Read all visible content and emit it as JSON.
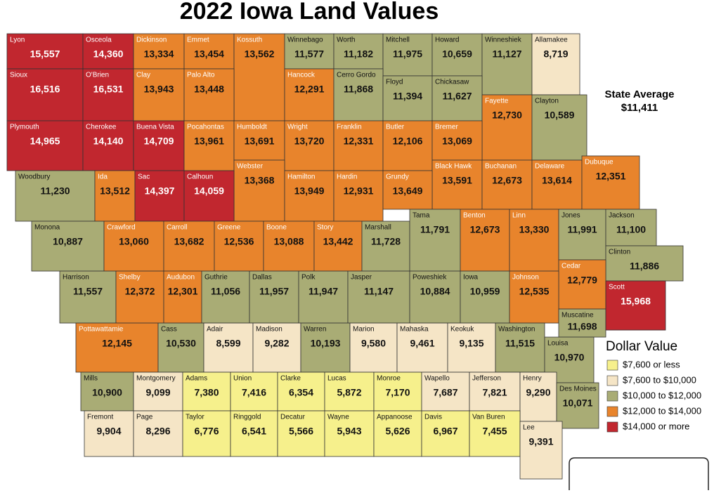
{
  "map": {
    "title": "2022 Iowa Land Values",
    "state_average": {
      "label": "State Average",
      "value_label": "$11,411"
    },
    "legend": {
      "title": "Dollar Value",
      "breaks": [
        7600,
        10000,
        12000,
        14000
      ],
      "items": [
        {
          "label": "$7,600 or less",
          "color": "#f6f08c"
        },
        {
          "label": "$7,600 to $10,000",
          "color": "#f5e5c6"
        },
        {
          "label": "$10,000 to $12,000",
          "color": "#a9ac75"
        },
        {
          "label": "$12,000 to $14,000",
          "color": "#e8842c"
        },
        {
          "label": "$14,000 or more",
          "color": "#c1272f"
        }
      ]
    },
    "counties": {
      "names": [
        "Lyon",
        "Osceola",
        "Dickinson",
        "Emmet",
        "Kossuth",
        "Winnebago",
        "Worth",
        "Mitchell",
        "Howard",
        "Winneshiek",
        "Allamakee",
        "Sioux",
        "O'Brien",
        "Clay",
        "Palo Alto",
        "Hancock",
        "Cerro Gordo",
        "Floyd",
        "Chickasaw",
        "Fayette",
        "Clayton",
        "Plymouth",
        "Cherokee",
        "Buena Vista",
        "Pocahontas",
        "Humboldt",
        "Wright",
        "Franklin",
        "Butler",
        "Bremer",
        "Webster",
        "Black Hawk",
        "Buchanan",
        "Delaware",
        "Dubuque",
        "Woodbury",
        "Ida",
        "Sac",
        "Calhoun",
        "Hamilton",
        "Hardin",
        "Grundy",
        "Monona",
        "Crawford",
        "Carroll",
        "Greene",
        "Boone",
        "Story",
        "Marshall",
        "Tama",
        "Benton",
        "Linn",
        "Jones",
        "Jackson",
        "Clinton",
        "Cedar",
        "Harrison",
        "Shelby",
        "Audubon",
        "Guthrie",
        "Dallas",
        "Polk",
        "Jasper",
        "Poweshiek",
        "Iowa",
        "Johnson",
        "Muscatine",
        "Scott",
        "Pottawattamie",
        "Cass",
        "Adair",
        "Madison",
        "Warren",
        "Marion",
        "Mahaska",
        "Keokuk",
        "Washington",
        "Louisa",
        "Mills",
        "Montgomery",
        "Adams",
        "Union",
        "Clarke",
        "Lucas",
        "Monroe",
        "Wapello",
        "Jefferson",
        "Henry",
        "Des Moines",
        "Fremont",
        "Page",
        "Taylor",
        "Ringgold",
        "Decatur",
        "Wayne",
        "Appanoose",
        "Davis",
        "Van Buren",
        "Lee"
      ],
      "values": [
        15557,
        14360,
        13334,
        13454,
        13562,
        11577,
        11182,
        11975,
        10659,
        11127,
        8719,
        16516,
        16531,
        13943,
        13448,
        12291,
        11868,
        11394,
        11627,
        12730,
        10589,
        14965,
        14140,
        14709,
        13961,
        13691,
        13720,
        12331,
        12106,
        13069,
        13368,
        13591,
        12673,
        13614,
        12351,
        11230,
        13512,
        14397,
        14059,
        13949,
        12931,
        13649,
        10887,
        13060,
        13682,
        12536,
        13088,
        13442,
        11728,
        11791,
        12673,
        13330,
        11991,
        11100,
        11886,
        12779,
        11557,
        12372,
        12301,
        11056,
        11957,
        11947,
        11147,
        10884,
        10959,
        12535,
        11698,
        15968,
        12145,
        10530,
        8599,
        9282,
        10193,
        9580,
        9461,
        9135,
        11515,
        10970,
        10900,
        9099,
        7380,
        7416,
        6354,
        5872,
        7170,
        7687,
        7821,
        9290,
        10071,
        9904,
        8296,
        6776,
        6541,
        5566,
        5943,
        5626,
        6967,
        7455,
        9391
      ],
      "value_labels": [
        "15,557",
        "14,360",
        "13,334",
        "13,454",
        "13,562",
        "11,577",
        "11,182",
        "11,975",
        "10,659",
        "11,127",
        "8,719",
        "16,516",
        "16,531",
        "13,943",
        "13,448",
        "12,291",
        "11,868",
        "11,394",
        "11,627",
        "12,730",
        "10,589",
        "14,965",
        "14,140",
        "14,709",
        "13,961",
        "13,691",
        "13,720",
        "12,331",
        "12,106",
        "13,069",
        "13,368",
        "13,591",
        "12,673",
        "13,614",
        "12,351",
        "11,230",
        "13,512",
        "14,397",
        "14,059",
        "13,949",
        "12,931",
        "13,649",
        "10,887",
        "13,060",
        "13,682",
        "12,536",
        "13,088",
        "13,442",
        "11,728",
        "11,791",
        "12,673",
        "13,330",
        "11,991",
        "11,100",
        "11,886",
        "12,779",
        "11,557",
        "12,372",
        "12,301",
        "11,056",
        "11,957",
        "11,947",
        "11,147",
        "10,884",
        "10,959",
        "12,535",
        "11,698",
        "15,968",
        "12,145",
        "10,530",
        "8,599",
        "9,282",
        "10,193",
        "9,580",
        "9,461",
        "9,135",
        "11,515",
        "10,970",
        "10,900",
        "9,099",
        "7,380",
        "7,416",
        "6,354",
        "5,872",
        "7,170",
        "7,687",
        "7,821",
        "9,290",
        "10,071",
        "9,904",
        "8,296",
        "6,776",
        "6,541",
        "5,566",
        "5,943",
        "5,626",
        "6,967",
        "7,455",
        "9,391"
      ]
    }
  }
}
